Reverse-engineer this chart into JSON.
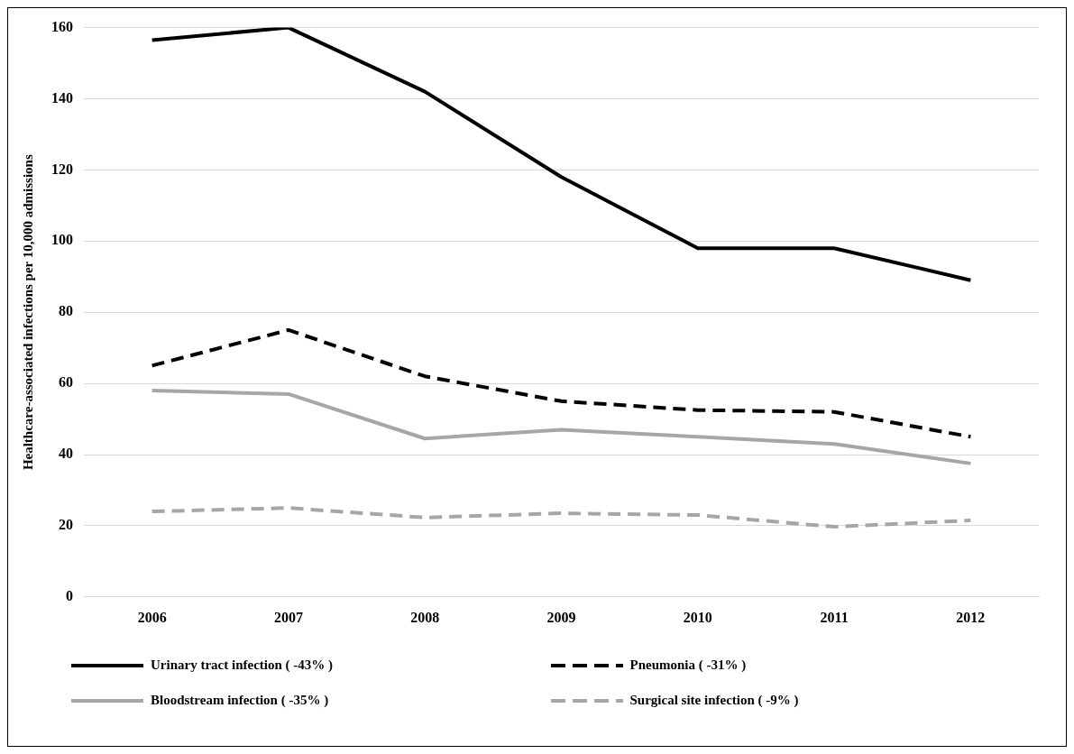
{
  "chart_data": {
    "type": "line",
    "ylabel": "Healthcare-associated infections per 10,000 admissions",
    "categories": [
      "2006",
      "2007",
      "2008",
      "2009",
      "2010",
      "2011",
      "2012"
    ],
    "series": [
      {
        "name": "Urinary tract infection ( -43% )",
        "color": "#000000",
        "line_style": "solid",
        "values": [
          156.5,
          160,
          142,
          118,
          98,
          98,
          89
        ]
      },
      {
        "name": "Pneumonia ( -31% )",
        "color": "#000000",
        "line_style": "dashed",
        "values": [
          65,
          75,
          62,
          55,
          52.5,
          52,
          45
        ]
      },
      {
        "name": "Bloodstream infection ( -35% )",
        "color": "#a6a6a6",
        "line_style": "solid",
        "values": [
          58,
          57,
          44.5,
          47,
          45,
          43,
          37.5
        ]
      },
      {
        "name": "Surgical site infection ( -9% )",
        "color": "#a6a6a6",
        "line_style": "dashed",
        "values": [
          24,
          25,
          22.3,
          23.5,
          23,
          19.7,
          21.5
        ]
      }
    ],
    "ylim": [
      0,
      160
    ],
    "yticks": [
      0,
      20,
      40,
      60,
      80,
      100,
      120,
      140,
      160
    ],
    "grid": "y",
    "legend": "bottom",
    "marker": "none"
  }
}
